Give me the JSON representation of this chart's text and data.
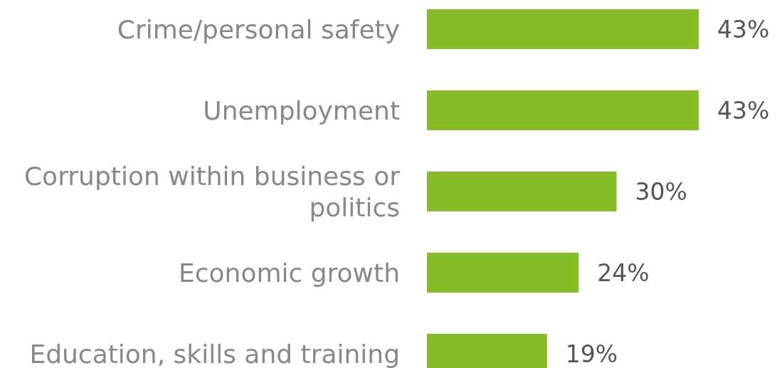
{
  "chart_data": {
    "type": "bar",
    "orientation": "horizontal",
    "categories": [
      "Crime/personal safety",
      "Unemployment",
      "Corruption within business or politics",
      "Economic growth",
      "Education, skills and training"
    ],
    "values": [
      43,
      43,
      30,
      24,
      19
    ],
    "color": "#86bc25",
    "value_labels": [
      "43%",
      "43%",
      "30%",
      "24%",
      "19%"
    ]
  }
}
